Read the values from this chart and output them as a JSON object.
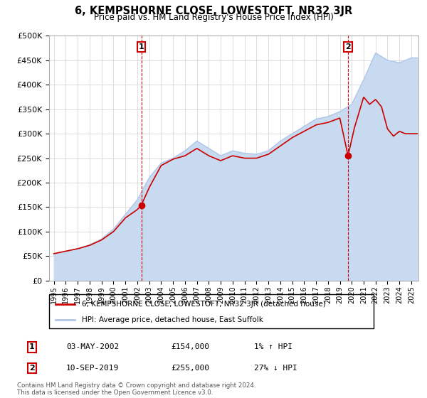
{
  "title": "6, KEMPSHORNE CLOSE, LOWESTOFT, NR32 3JR",
  "subtitle": "Price paid vs. HM Land Registry's House Price Index (HPI)",
  "ylabel_ticks": [
    "£0",
    "£50K",
    "£100K",
    "£150K",
    "£200K",
    "£250K",
    "£300K",
    "£350K",
    "£400K",
    "£450K",
    "£500K"
  ],
  "ytick_values": [
    0,
    50000,
    100000,
    150000,
    200000,
    250000,
    300000,
    350000,
    400000,
    450000,
    500000
  ],
  "xlim_start": 1994.6,
  "xlim_end": 2025.6,
  "ylim": [
    0,
    500000
  ],
  "sale1_x": 2002.34,
  "sale1_y": 154000,
  "sale1_label": "1",
  "sale2_x": 2019.69,
  "sale2_y": 255000,
  "sale2_label": "2",
  "legend_line1": "6, KEMPSHORNE CLOSE, LOWESTOFT, NR32 3JR (detached house)",
  "legend_line2": "HPI: Average price, detached house, East Suffolk",
  "annotation1_date": "03-MAY-2002",
  "annotation1_price": "£154,000",
  "annotation1_hpi": "1% ↑ HPI",
  "annotation2_date": "10-SEP-2019",
  "annotation2_price": "£255,000",
  "annotation2_hpi": "27% ↓ HPI",
  "footer": "Contains HM Land Registry data © Crown copyright and database right 2024.\nThis data is licensed under the Open Government Licence v3.0.",
  "hpi_color": "#aec6e8",
  "hpi_fill_color": "#c8daf0",
  "price_color": "#cc0000",
  "marker_color": "#cc0000",
  "background_color": "#ffffff"
}
